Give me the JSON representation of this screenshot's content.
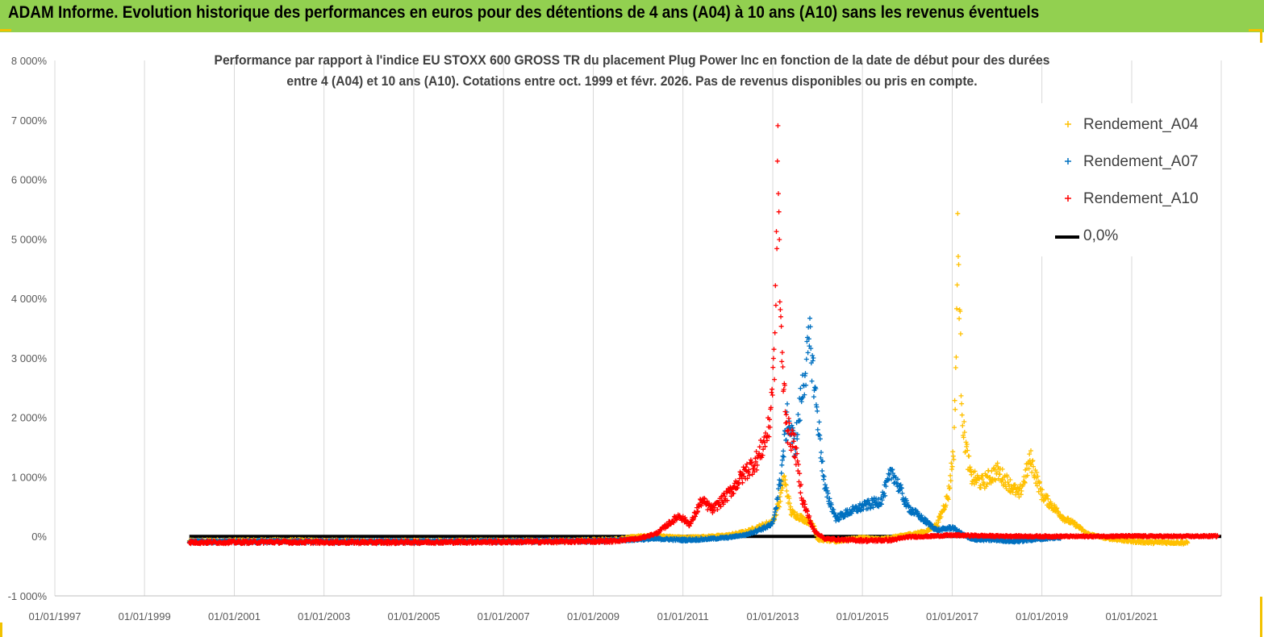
{
  "header": {
    "title": "ADAM Informe. Evolution historique des performances en euros pour des détentions de 4 ans (A04) à 10 ans (A10) sans les revenus éventuels"
  },
  "colors": {
    "banner": "#92d050",
    "A04": "#ffc000",
    "A07": "#0070c0",
    "A10": "#ff0000",
    "zero": "#000000"
  },
  "chart_data": {
    "type": "scatter",
    "title_lines": [
      "Performance par rapport à l'indice EU STOXX 600 GROSS TR  du placement Plug Power Inc en fonction de la date de début pour des durées",
      "entre 4 (A04) et 10 ans (A10). Cotations entre oct. 1999 et févr. 2026. Pas de revenus disponibles ou pris en compte."
    ],
    "xlabel": "",
    "ylabel": "",
    "x_axis": {
      "min": "1997-01-01",
      "max": "2022-12-31",
      "ticks": [
        "01/01/1997",
        "01/01/1999",
        "01/01/2001",
        "01/01/2003",
        "01/01/2005",
        "01/01/2007",
        "01/01/2009",
        "01/01/2011",
        "01/01/2013",
        "01/01/2015",
        "01/01/2017",
        "01/01/2019",
        "01/01/2021"
      ]
    },
    "y_axis": {
      "min": -1000,
      "max": 8000,
      "unit": "%",
      "ticks": [
        "-1 000%",
        "0%",
        "1 000%",
        "2 000%",
        "3 000%",
        "4 000%",
        "5 000%",
        "6 000%",
        "7 000%",
        "8 000%"
      ]
    },
    "grid": "vertical",
    "legend_position": "top-right",
    "legend": [
      "Rendement_A04",
      "Rendement_A07",
      "Rendement_A10",
      "0,0%"
    ],
    "series": [
      {
        "name": "Rendement_A04",
        "color": "#ffc000",
        "marker": "+",
        "points": [
          [
            "2000-01-01",
            -80
          ],
          [
            "2002-01-01",
            -70
          ],
          [
            "2004-01-01",
            -85
          ],
          [
            "2006-01-01",
            -80
          ],
          [
            "2008-01-01",
            -75
          ],
          [
            "2009-06-01",
            -60
          ],
          [
            "2010-01-01",
            0
          ],
          [
            "2010-06-01",
            10
          ],
          [
            "2011-01-01",
            -20
          ],
          [
            "2011-06-01",
            -10
          ],
          [
            "2012-01-01",
            20
          ],
          [
            "2012-06-01",
            80
          ],
          [
            "2013-01-01",
            250
          ],
          [
            "2013-03-01",
            600
          ],
          [
            "2013-04-01",
            1000
          ],
          [
            "2013-06-01",
            400
          ],
          [
            "2013-09-01",
            300
          ],
          [
            "2013-12-01",
            200
          ],
          [
            "2014-01-01",
            -50
          ],
          [
            "2014-06-01",
            -80
          ],
          [
            "2015-01-01",
            -20
          ],
          [
            "2015-06-01",
            -50
          ],
          [
            "2016-01-01",
            30
          ],
          [
            "2016-06-01",
            80
          ],
          [
            "2016-09-01",
            200
          ],
          [
            "2016-12-01",
            700
          ],
          [
            "2017-01-15",
            1500
          ],
          [
            "2017-02-01",
            3000
          ],
          [
            "2017-02-15",
            5000
          ],
          [
            "2017-03-01",
            4000
          ],
          [
            "2017-03-15",
            2600
          ],
          [
            "2017-04-01",
            1800
          ],
          [
            "2017-06-01",
            1000
          ],
          [
            "2017-09-01",
            900
          ],
          [
            "2018-01-01",
            1100
          ],
          [
            "2018-04-01",
            900
          ],
          [
            "2018-07-01",
            700
          ],
          [
            "2018-10-01",
            1300
          ],
          [
            "2019-01-01",
            700
          ],
          [
            "2019-04-01",
            500
          ],
          [
            "2019-07-01",
            300
          ],
          [
            "2019-10-01",
            200
          ],
          [
            "2020-01-01",
            50
          ],
          [
            "2020-06-01",
            -30
          ],
          [
            "2021-01-01",
            -80
          ],
          [
            "2021-06-01",
            -100
          ],
          [
            "2022-01-01",
            -100
          ],
          [
            "2022-04-01",
            -110
          ]
        ]
      },
      {
        "name": "Rendement_A07",
        "color": "#0070c0",
        "marker": "+",
        "points": [
          [
            "2000-01-01",
            -90
          ],
          [
            "2002-01-01",
            -85
          ],
          [
            "2004-01-01",
            -90
          ],
          [
            "2006-01-01",
            -85
          ],
          [
            "2008-01-01",
            -80
          ],
          [
            "2009-06-01",
            -70
          ],
          [
            "2010-01-01",
            -50
          ],
          [
            "2010-06-01",
            -40
          ],
          [
            "2011-01-01",
            -60
          ],
          [
            "2011-06-01",
            -50
          ],
          [
            "2012-01-01",
            -20
          ],
          [
            "2012-06-01",
            30
          ],
          [
            "2013-01-01",
            200
          ],
          [
            "2013-03-01",
            900
          ],
          [
            "2013-05-01",
            2000
          ],
          [
            "2013-07-01",
            1500
          ],
          [
            "2013-09-01",
            2500
          ],
          [
            "2013-11-01",
            3300
          ],
          [
            "2014-01-01",
            2000
          ],
          [
            "2014-03-01",
            800
          ],
          [
            "2014-06-01",
            300
          ],
          [
            "2014-09-01",
            400
          ],
          [
            "2015-01-01",
            500
          ],
          [
            "2015-06-01",
            600
          ],
          [
            "2015-09-01",
            1100
          ],
          [
            "2016-01-01",
            500
          ],
          [
            "2016-06-01",
            250
          ],
          [
            "2016-09-01",
            100
          ],
          [
            "2017-01-01",
            150
          ],
          [
            "2017-06-01",
            -50
          ],
          [
            "2018-01-01",
            -60
          ],
          [
            "2018-06-01",
            -80
          ],
          [
            "2019-01-01",
            -40
          ],
          [
            "2019-06-01",
            -20
          ]
        ]
      },
      {
        "name": "Rendement_A10",
        "color": "#ff0000",
        "marker": "+",
        "points": [
          [
            "2000-01-01",
            -100
          ],
          [
            "2002-01-01",
            -95
          ],
          [
            "2004-01-01",
            -100
          ],
          [
            "2006-01-01",
            -95
          ],
          [
            "2008-01-01",
            -90
          ],
          [
            "2009-06-01",
            -80
          ],
          [
            "2010-01-01",
            -40
          ],
          [
            "2010-06-01",
            50
          ],
          [
            "2010-12-01",
            350
          ],
          [
            "2011-03-01",
            200
          ],
          [
            "2011-06-01",
            600
          ],
          [
            "2011-09-01",
            450
          ],
          [
            "2012-01-01",
            700
          ],
          [
            "2012-06-01",
            1100
          ],
          [
            "2012-09-01",
            1300
          ],
          [
            "2012-12-01",
            1800
          ],
          [
            "2013-01-15",
            3000
          ],
          [
            "2013-02-01",
            4700
          ],
          [
            "2013-02-10",
            6800
          ],
          [
            "2013-02-20",
            5400
          ],
          [
            "2013-03-01",
            4000
          ],
          [
            "2013-03-15",
            3000
          ],
          [
            "2013-05-01",
            1800
          ],
          [
            "2013-07-01",
            1500
          ],
          [
            "2013-09-01",
            600
          ],
          [
            "2013-12-01",
            100
          ],
          [
            "2014-03-01",
            -40
          ],
          [
            "2014-09-01",
            -60
          ],
          [
            "2015-03-01",
            -70
          ],
          [
            "2015-09-01",
            -60
          ],
          [
            "2016-01-01",
            -10
          ],
          [
            "2016-06-01",
            0
          ],
          [
            "2017-01-01",
            20
          ],
          [
            "2018-01-01",
            5
          ],
          [
            "2019-01-01",
            0
          ],
          [
            "2020-01-01",
            0
          ],
          [
            "2021-01-01",
            5
          ],
          [
            "2022-01-01",
            0
          ],
          [
            "2022-12-01",
            5
          ]
        ]
      },
      {
        "name": "0,0%",
        "color": "#000000",
        "type": "line",
        "points": [
          [
            "2000-01-01",
            0
          ],
          [
            "2022-12-31",
            0
          ]
        ]
      }
    ]
  }
}
